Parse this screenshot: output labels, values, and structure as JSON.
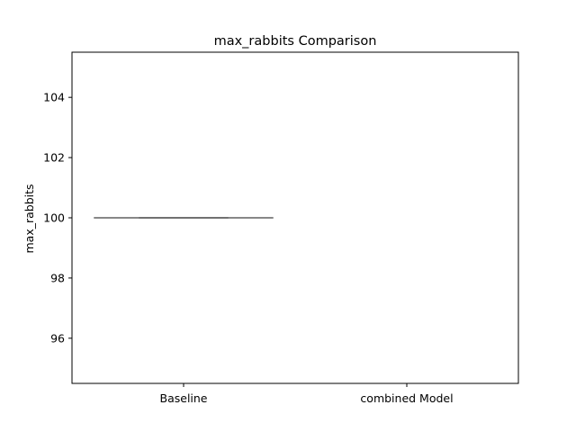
{
  "chart_data": {
    "type": "box",
    "title": "max_rabbits Comparison",
    "xlabel": "",
    "ylabel": "max_rabbits",
    "categories": [
      "Baseline",
      "combined Model"
    ],
    "series": [
      {
        "category": "Baseline",
        "min": 100,
        "q1": 100,
        "median": 100,
        "q3": 100,
        "max": 100
      }
    ],
    "ylim": [
      94.5,
      105.5
    ],
    "yticks": [
      96,
      98,
      100,
      102,
      104
    ],
    "ytick_labels": [
      "96",
      "98",
      "100",
      "102",
      "104"
    ],
    "grid": false,
    "colors": {
      "box": "#555555",
      "axis": "#000000"
    }
  }
}
